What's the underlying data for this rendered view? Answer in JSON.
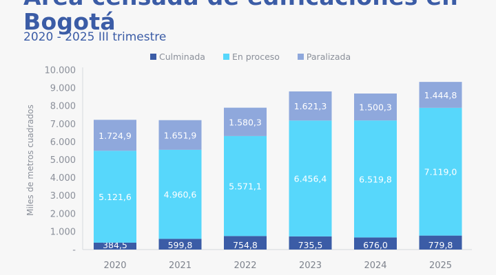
{
  "chart_data": {
    "type": "bar",
    "stacked": true,
    "title": "Área censada de edificaciones en Bogotá",
    "subtitle": "2020 - 2025 III trimestre",
    "ylabel": "Miles de metros cuadrados",
    "xlabel": "",
    "ylim": [
      0,
      10000
    ],
    "yticks": [
      "-",
      "1.000",
      "2.000",
      "3.000",
      "4.000",
      "5.000",
      "6.000",
      "7.000",
      "8.000",
      "9.000",
      "10.000"
    ],
    "categories": [
      "2020",
      "2021",
      "2022",
      "2023",
      "2024",
      "2025"
    ],
    "legend_position": "top-right",
    "grid": false,
    "series": [
      {
        "name": "Culminada",
        "color": "#3b5ca6",
        "values": [
          384.5,
          599.8,
          754.8,
          735.5,
          676.0,
          779.8
        ],
        "labels": [
          "384,5",
          "599,8",
          "754,8",
          "735,5",
          "676,0",
          "779,8"
        ]
      },
      {
        "name": "En proceso",
        "color": "#57d7fb",
        "values": [
          5121.6,
          4960.6,
          5571.1,
          6456.4,
          6519.8,
          7119.0
        ],
        "labels": [
          "5.121,6",
          "4.960,6",
          "5.571,1",
          "6.456,4",
          "6.519,8",
          "7.119,0"
        ]
      },
      {
        "name": "Paralizada",
        "color": "#8fa8dc",
        "values": [
          1724.9,
          1651.9,
          1580.3,
          1621.3,
          1500.3,
          1444.8
        ],
        "labels": [
          "1.724,9",
          "1.651,9",
          "1.580,3",
          "1.621,3",
          "1.500,3",
          "1.444,8"
        ]
      }
    ]
  }
}
